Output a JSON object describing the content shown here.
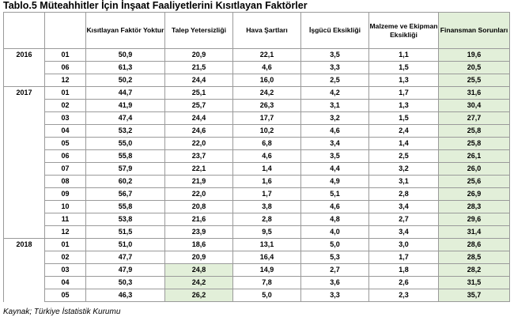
{
  "title": "Tablo.5 Müteahhitler İçin İnşaat Faaliyetlerini Kısıtlayan Faktörler",
  "columns": [
    "",
    "",
    "Kısıtlayan Faktör Yoktur",
    "Talep Yetersizliği",
    "Hava Şartları",
    "İşgücü Eksikliği",
    "Malzeme ve Ekipman Eksikliği",
    "Finansman Sorunları"
  ],
  "rows": [
    {
      "year": "2016",
      "month": "01",
      "values": [
        "50,9",
        "20,9",
        "22,1",
        "3,5",
        "1,1",
        "19,6"
      ]
    },
    {
      "year": "",
      "month": "06",
      "values": [
        "61,3",
        "21,5",
        "4,6",
        "3,3",
        "1,5",
        "20,5"
      ]
    },
    {
      "year": "",
      "month": "12",
      "values": [
        "50,2",
        "24,4",
        "16,0",
        "2,5",
        "1,3",
        "25,5"
      ]
    },
    {
      "year": "2017",
      "month": "01",
      "values": [
        "44,7",
        "25,1",
        "24,2",
        "4,2",
        "1,7",
        "31,6"
      ]
    },
    {
      "year": "",
      "month": "02",
      "values": [
        "41,9",
        "25,7",
        "26,3",
        "3,1",
        "1,3",
        "30,4"
      ]
    },
    {
      "year": "",
      "month": "03",
      "values": [
        "47,4",
        "24,4",
        "17,7",
        "3,2",
        "1,5",
        "27,7"
      ]
    },
    {
      "year": "",
      "month": "04",
      "values": [
        "53,2",
        "24,6",
        "10,2",
        "4,6",
        "2,4",
        "25,8"
      ]
    },
    {
      "year": "",
      "month": "05",
      "values": [
        "55,0",
        "22,0",
        "6,8",
        "3,4",
        "1,4",
        "25,8"
      ]
    },
    {
      "year": "",
      "month": "06",
      "values": [
        "55,8",
        "23,7",
        "4,6",
        "3,5",
        "2,5",
        "26,1"
      ]
    },
    {
      "year": "",
      "month": "07",
      "values": [
        "57,9",
        "22,1",
        "1,4",
        "4,4",
        "3,2",
        "26,0"
      ]
    },
    {
      "year": "",
      "month": "08",
      "values": [
        "60,2",
        "21,9",
        "1,6",
        "4,9",
        "3,1",
        "25,6"
      ]
    },
    {
      "year": "",
      "month": "09",
      "values": [
        "56,7",
        "22,0",
        "1,7",
        "5,1",
        "2,8",
        "26,9"
      ]
    },
    {
      "year": "",
      "month": "10",
      "values": [
        "55,8",
        "20,8",
        "3,8",
        "4,6",
        "3,4",
        "28,3"
      ]
    },
    {
      "year": "",
      "month": "11",
      "values": [
        "53,8",
        "21,6",
        "2,8",
        "4,8",
        "2,7",
        "29,6"
      ]
    },
    {
      "year": "",
      "month": "12",
      "values": [
        "51,5",
        "23,9",
        "9,5",
        "4,0",
        "3,4",
        "31,4"
      ]
    },
    {
      "year": "2018",
      "month": "01",
      "values": [
        "51,0",
        "18,6",
        "13,1",
        "5,0",
        "3,0",
        "28,6"
      ]
    },
    {
      "year": "",
      "month": "02",
      "values": [
        "47,7",
        "20,9",
        "16,4",
        "5,3",
        "1,7",
        "28,5"
      ]
    },
    {
      "year": "",
      "month": "03",
      "values": [
        "47,9",
        "24,8",
        "14,9",
        "2,7",
        "1,8",
        "28,2"
      ]
    },
    {
      "year": "",
      "month": "04",
      "values": [
        "50,3",
        "24,2",
        "7,8",
        "3,6",
        "2,6",
        "31,5"
      ]
    },
    {
      "year": "",
      "month": "05",
      "values": [
        "46,3",
        "26,2",
        "5,0",
        "3,3",
        "2,3",
        "35,7"
      ]
    }
  ],
  "highlight_color": "#e2efd9",
  "source": "Kaynak; Türkiye İstatistik Kurumu"
}
